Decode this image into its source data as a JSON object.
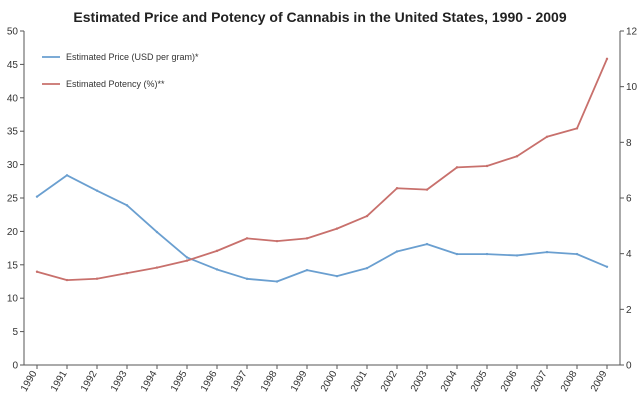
{
  "chart_data": {
    "type": "line",
    "title": "Estimated Price and Potency of Cannabis in the United States, 1990 - 2009",
    "x": [
      "1990",
      "1991",
      "1992",
      "1993",
      "1994",
      "1995",
      "1996",
      "1997",
      "1998",
      "1999",
      "2000",
      "2001",
      "2002",
      "2003",
      "2004",
      "2005",
      "2006",
      "2007",
      "2008",
      "2009"
    ],
    "y_left": {
      "ylim": [
        0,
        50
      ],
      "ticks": [
        "0",
        "5",
        "10",
        "15",
        "20",
        "25",
        "30",
        "35",
        "40",
        "45",
        "50"
      ]
    },
    "y_right": {
      "ylim": [
        0,
        12
      ],
      "ticks": [
        "0",
        "2",
        "4",
        "6",
        "8",
        "10",
        "12"
      ]
    },
    "series": [
      {
        "name": "Estimated Price (USD per gram)*",
        "axis": "left",
        "color": "#6a9fd0",
        "values": [
          25.2,
          28.4,
          26.1,
          23.9,
          19.9,
          16.1,
          14.3,
          12.9,
          12.5,
          14.2,
          13.3,
          14.5,
          17.0,
          18.1,
          16.6,
          16.6,
          16.4,
          16.9,
          16.6,
          14.7
        ]
      },
      {
        "name": "Estimated Potency (%)**",
        "axis": "right",
        "color": "#c8706c",
        "values": [
          3.35,
          3.05,
          3.1,
          3.3,
          3.5,
          3.75,
          4.1,
          4.55,
          4.45,
          4.55,
          4.9,
          5.35,
          6.35,
          6.3,
          7.1,
          7.15,
          7.5,
          8.2,
          8.5,
          11.0
        ]
      }
    ],
    "grid": false,
    "legend": "top-left"
  }
}
